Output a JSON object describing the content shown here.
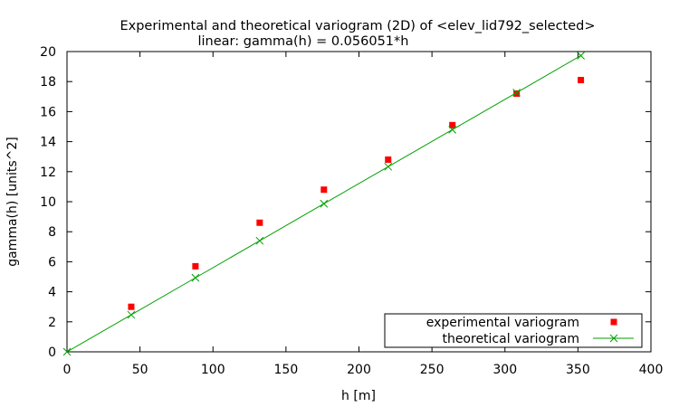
{
  "chart_data": {
    "type": "scatter",
    "title": "Experimental and theoretical variogram (2D) of <elev_lid792_selected>",
    "subtitle": "linear: gamma(h) = 0.056051*h",
    "xlabel": "h [m]",
    "ylabel": "gamma(h) [units^2]",
    "xlim": [
      0,
      400
    ],
    "ylim": [
      0,
      20
    ],
    "x_ticks": [
      0,
      50,
      100,
      150,
      200,
      250,
      300,
      350,
      400
    ],
    "y_ticks": [
      0,
      2,
      4,
      6,
      8,
      10,
      12,
      14,
      16,
      18,
      20
    ],
    "grid": false,
    "legend_position": "bottom-right",
    "series": [
      {
        "name": "experimental variogram",
        "marker": "square",
        "color": "#ff0000",
        "x": [
          44,
          88,
          132,
          176,
          220,
          264,
          308,
          352
        ],
        "y": [
          3.0,
          5.7,
          8.6,
          10.8,
          12.8,
          15.1,
          17.2,
          18.1
        ]
      },
      {
        "name": "theoretical variogram",
        "marker": "cross",
        "line": true,
        "color": "#00a000",
        "x": [
          0,
          44,
          88,
          132,
          176,
          220,
          264,
          308,
          352
        ],
        "y": [
          0,
          2.466,
          4.932,
          7.399,
          9.865,
          12.331,
          14.797,
          17.264,
          19.73
        ]
      }
    ]
  }
}
